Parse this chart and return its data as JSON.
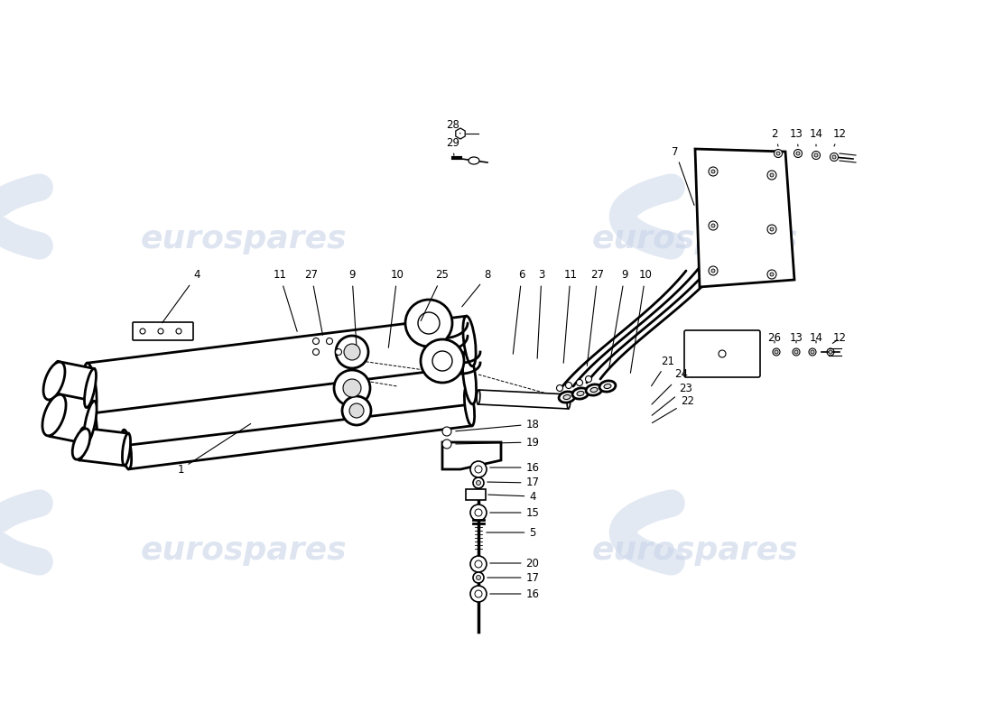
{
  "bg_color": "#ffffff",
  "line_color": "#000000",
  "watermark_color": "#c8d4e8",
  "watermark_text": "eurospares",
  "fig_width": 11.0,
  "fig_height": 8.0,
  "dpi": 100
}
